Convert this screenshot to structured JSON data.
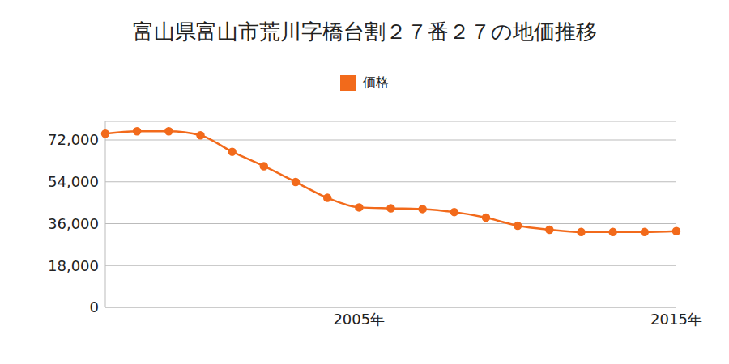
{
  "chart_data": {
    "type": "line",
    "title": "富山県富山市荒川字橋台割２７番２７の地価推移",
    "categories": [
      null,
      null,
      null,
      null,
      null,
      null,
      null,
      null,
      "2005年",
      null,
      null,
      null,
      null,
      null,
      null,
      null,
      null,
      null,
      "2015年"
    ],
    "series": [
      {
        "name": "価格",
        "color": "#f26a1b",
        "marker": "circle",
        "values": [
          74700,
          75750,
          75750,
          74000,
          66900,
          60700,
          53900,
          47100,
          43000,
          42600,
          42300,
          41000,
          38600,
          35100,
          33400,
          32400,
          32400,
          32400,
          32800
        ]
      }
    ],
    "ylim": [
      0,
      80000
    ],
    "yticks": [
      0,
      {
        "value": 18000,
        "label": "18,000"
      },
      {
        "value": 36000,
        "label": "36,000"
      },
      {
        "value": 54000,
        "label": "54,000"
      },
      {
        "value": 72000,
        "label": "72,000"
      }
    ],
    "grid": true
  }
}
